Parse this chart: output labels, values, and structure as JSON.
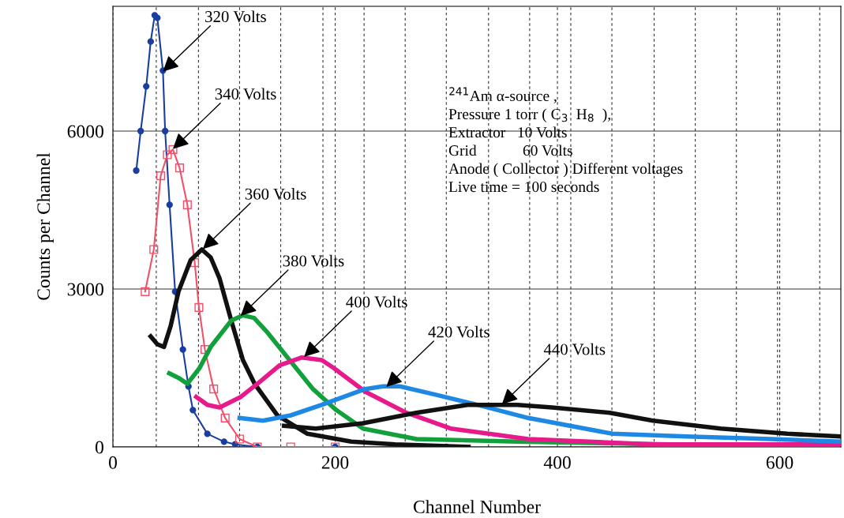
{
  "chart_data": {
    "type": "line",
    "xlabel": "Channel Number",
    "ylabel": "Counts per Channel",
    "xlim": [
      0,
      655
    ],
    "ylim": [
      0,
      8370
    ],
    "xticks": [
      0,
      {
        "value": 39,
        "label": null
      },
      {
        "value": 77,
        "label": null
      },
      {
        "value": 114,
        "label": null
      },
      {
        "value": 151,
        "label": null
      },
      {
        "value": 189,
        "label": null
      },
      200,
      {
        "value": 226,
        "label": null
      },
      {
        "value": 263,
        "label": null
      },
      {
        "value": 300,
        "label": null
      },
      {
        "value": 338,
        "label": null
      },
      {
        "value": 375,
        "label": null
      },
      400,
      {
        "value": 412,
        "label": null
      },
      {
        "value": 449,
        "label": null
      },
      {
        "value": 487,
        "label": null
      },
      {
        "value": 524,
        "label": null
      },
      {
        "value": 561,
        "label": null
      },
      {
        "value": 598,
        "label": null
      },
      600,
      {
        "value": 636,
        "label": null
      }
    ],
    "yticks": [
      0,
      3000,
      6000
    ],
    "grid": true,
    "series": [
      {
        "color": "#1a3ea0",
        "marker": "circle",
        "x": [
          21,
          25,
          30,
          34,
          37.6,
          40,
          45,
          47,
          51,
          56,
          63,
          68,
          72,
          85,
          100,
          110,
          130,
          200,
          300
        ],
        "values": [
          5250,
          6000,
          6850,
          7700,
          8200,
          8150,
          7150,
          6000,
          4600,
          2950,
          1850,
          1150,
          700,
          250,
          100,
          50,
          0,
          0,
          0
        ]
      },
      {
        "color": "#f0506a",
        "marker": "square",
        "x": [
          29,
          36.8,
          43,
          49,
          54,
          60,
          67,
          73.6,
          77.4,
          82.8,
          90.7,
          101,
          114,
          130,
          160,
          200
        ],
        "values": [
          2950,
          3750,
          5150,
          5550,
          5650,
          5300,
          4600,
          3500,
          2650,
          1850,
          1100,
          550,
          150,
          0,
          0,
          0
        ]
      },
      {
        "color": "#111111",
        "marker": "none",
        "x": [
          34,
          40,
          46,
          52,
          59,
          70,
          80,
          88,
          96,
          106.5,
          117,
          127.5,
          148,
          175,
          214.5,
          254,
          320
        ],
        "values": [
          2100,
          1950,
          1900,
          2300,
          2950,
          3550,
          3750,
          3600,
          3200,
          2400,
          1650,
          1200,
          600,
          250,
          100,
          50,
          0
        ]
      },
      {
        "color": "#12a03c",
        "marker": "none",
        "x": [
          50.7,
          60,
          67,
          78,
          88,
          106.5,
          117,
          127,
          138,
          159,
          180,
          201,
          225,
          273,
          364,
          500,
          655
        ],
        "values": [
          1400,
          1300,
          1200,
          1500,
          1900,
          2400,
          2500,
          2450,
          2200,
          1650,
          1100,
          700,
          350,
          150,
          100,
          50,
          50
        ]
      },
      {
        "color": "#e8198b",
        "marker": "none",
        "x": [
          75,
          85,
          96,
          115,
          133,
          150,
          170,
          188,
          198.6,
          227,
          264,
          304,
          373.6,
          486,
          655
        ],
        "values": [
          950,
          800,
          750,
          950,
          1250,
          1550,
          1700,
          1650,
          1500,
          1050,
          650,
          350,
          150,
          50,
          50
        ]
      },
      {
        "color": "#1e88e5",
        "marker": "none",
        "x": [
          114,
          135,
          160,
          188,
          227,
          243,
          258.5,
          289,
          328,
          373.6,
          449.6,
          516,
          592,
          655
        ],
        "values": [
          550,
          500,
          600,
          800,
          1100,
          1150,
          1150,
          1000,
          800,
          550,
          250,
          200,
          150,
          100
        ]
      },
      {
        "color": "#111111",
        "marker": "none",
        "x": [
          154,
          182.5,
          225,
          273,
          319,
          364,
          395,
          447,
          486,
          547,
          607,
          655
        ],
        "values": [
          400,
          350,
          450,
          650,
          800,
          800,
          750,
          650,
          500,
          350,
          250,
          200
        ]
      }
    ],
    "annotations": [
      {
        "text": "320 Volts",
        "x": 45,
        "y": 7130
      },
      {
        "text": "340 Volts",
        "x": 54,
        "y": 5660
      },
      {
        "text": "360 Volts",
        "x": 81,
        "y": 3760
      },
      {
        "text": "380 Volts",
        "x": 115,
        "y": 2490
      },
      {
        "text": "400 Volts",
        "x": 172,
        "y": 1710
      },
      {
        "text": "420 Volts",
        "x": 246,
        "y": 1140
      },
      {
        "text": "440 Volts",
        "x": 350,
        "y": 810
      },
      "$^{241}$Am α-source ,",
      "Pressure 1 torr ( C$_{3}$  H$_{8}$  ),",
      "Extractor   10 Volts",
      "Grid            60 Volts",
      "Anode ( Collector ) Different voltages",
      "Live time = 100 seconds"
    ]
  }
}
